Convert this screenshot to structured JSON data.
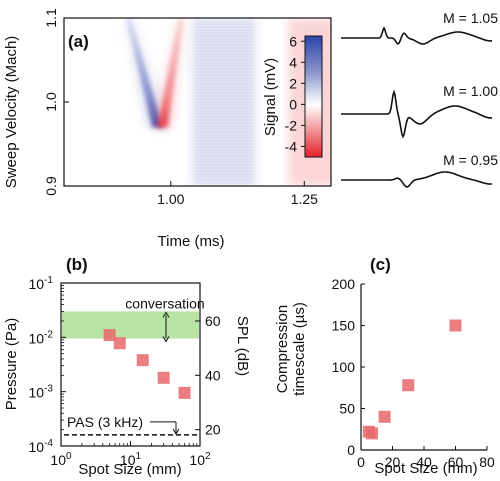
{
  "chart_data": [
    {
      "id": "a",
      "type": "heatmap",
      "panel_label": "(a)",
      "xlabel": "Time (ms)",
      "ylabel": "Sweep Velocity (Mach)",
      "xlim": [
        0.8,
        1.3
      ],
      "ylim": [
        0.9,
        1.1
      ],
      "xticks": [
        {
          "v": 1.0,
          "label": "1.00"
        },
        {
          "v": 1.25,
          "label": "1.25"
        }
      ],
      "yticks": [
        {
          "v": 0.9,
          "label": "0.9"
        },
        {
          "v": 1.0,
          "label": "1.0"
        },
        {
          "v": 1.1,
          "label": "1.1"
        }
      ],
      "colorbar": {
        "label": "Signal (mV)",
        "range": [
          -5,
          6.5
        ],
        "ticks": [
          {
            "v": 6,
            "label": "6"
          },
          {
            "v": 4,
            "label": "4"
          },
          {
            "v": 2,
            "label": "2"
          },
          {
            "v": 0,
            "label": "0"
          },
          {
            "v": -2,
            "label": "-2"
          },
          {
            "v": -4,
            "label": "-4"
          }
        ],
        "colors": {
          "positive": "#2b43a8",
          "zero": "#ffffff",
          "negative": "#e8202a"
        }
      },
      "features": {
        "blue_streak": [
          [
            0.92,
            1.1
          ],
          [
            0.975,
            0.97
          ]
        ],
        "red_streak": [
          [
            1.02,
            1.1
          ],
          [
            0.985,
            0.97
          ]
        ],
        "blue_band": [
          1.04,
          1.16
        ],
        "red_band": [
          1.22,
          1.3
        ]
      },
      "waveforms": [
        {
          "label": "M = 1.05",
          "mach": 1.05
        },
        {
          "label": "M = 1.00",
          "mach": 1.0
        },
        {
          "label": "M = 0.95",
          "mach": 0.95
        }
      ]
    },
    {
      "id": "b",
      "type": "scatter",
      "panel_label": "(b)",
      "xlabel": "Spot Size (mm)",
      "ylabel": "Pressure (Pa)",
      "ylabel_right": "SPL (dB)",
      "xscale": "log",
      "yscale": "log",
      "xlim_exp": [
        0,
        2
      ],
      "ylim_exp": [
        -4,
        -1
      ],
      "xticks": [
        {
          "e": 0,
          "base": "10",
          "sup": "0"
        },
        {
          "e": 1,
          "base": "10",
          "sup": "1"
        },
        {
          "e": 2,
          "base": "10",
          "sup": "2"
        }
      ],
      "yticks": [
        {
          "e": -1,
          "base": "10",
          "sup": "-1"
        },
        {
          "e": -2,
          "base": "10",
          "sup": "-2"
        },
        {
          "e": -3,
          "base": "10",
          "sup": "-3"
        },
        {
          "e": -4,
          "base": "10",
          "sup": "-4"
        }
      ],
      "right_ticks": [
        {
          "v": 60,
          "label": "60"
        },
        {
          "v": 40,
          "label": "40"
        },
        {
          "v": 20,
          "label": "20"
        }
      ],
      "x": [
        5,
        7,
        15,
        30,
        60
      ],
      "y": [
        0.011,
        0.0078,
        0.0038,
        0.0018,
        0.00095
      ],
      "band": {
        "label": "conversation",
        "ymin": 0.0095,
        "ymax": 0.03,
        "color": "#b7e3a4"
      },
      "threshold": {
        "label": "PAS (3 kHz)",
        "y": 0.00016
      },
      "marker_color": "#e8676b"
    },
    {
      "id": "c",
      "type": "scatter",
      "panel_label": "(c)",
      "xlabel": "Spot Size (mm)",
      "ylabel_lines": [
        "Compression",
        "timescale (µs)"
      ],
      "xlim": [
        0,
        80
      ],
      "ylim": [
        0,
        200
      ],
      "xticks": [
        {
          "v": 0,
          "label": "0"
        },
        {
          "v": 20,
          "label": "20"
        },
        {
          "v": 40,
          "label": "40"
        },
        {
          "v": 60,
          "label": "60"
        },
        {
          "v": 80,
          "label": "80"
        }
      ],
      "yticks": [
        {
          "v": 0,
          "label": "0"
        },
        {
          "v": 50,
          "label": "50"
        },
        {
          "v": 100,
          "label": "100"
        },
        {
          "v": 150,
          "label": "150"
        },
        {
          "v": 200,
          "label": "200"
        }
      ],
      "x": [
        5,
        7,
        15,
        30,
        60
      ],
      "y": [
        22,
        20,
        40,
        78,
        150
      ],
      "marker_color": "#e8676b"
    }
  ]
}
